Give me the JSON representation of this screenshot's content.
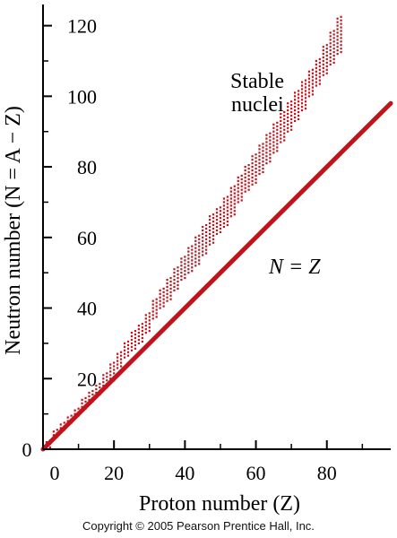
{
  "chart_data": {
    "type": "scatter",
    "title": "",
    "xlabel": "Proton number (Z)",
    "ylabel": "Neutron number (N = A − Z)",
    "xlim": [
      0,
      98
    ],
    "ylim": [
      0,
      126
    ],
    "x_ticks": [
      0,
      20,
      40,
      60,
      80
    ],
    "y_ticks": [
      0,
      20,
      40,
      60,
      80,
      100,
      120
    ],
    "grid": false,
    "colors": {
      "data": "#c0141c",
      "axes": "#000000"
    },
    "lines": [
      {
        "label": "N = Z",
        "x": [
          0,
          98
        ],
        "y": [
          0,
          98
        ]
      }
    ],
    "band": {
      "name": "Stable nuclei",
      "z": [
        1,
        3,
        5,
        7,
        9,
        11,
        13,
        15,
        17,
        19,
        21,
        23,
        25,
        27,
        29,
        31,
        33,
        35,
        37,
        39,
        41,
        43,
        45,
        47,
        49,
        51,
        53,
        55,
        57,
        59,
        61,
        63,
        65,
        67,
        69,
        71,
        73,
        75,
        77,
        79,
        81,
        83
      ],
      "n_min": [
        0,
        3,
        5,
        7,
        9,
        11,
        13,
        15,
        17,
        19,
        23,
        26,
        28,
        30,
        33,
        37,
        40,
        42,
        45,
        48,
        50,
        52,
        55,
        58,
        61,
        63,
        66,
        70,
        73,
        75,
        78,
        81,
        84,
        87,
        90,
        93,
        96,
        100,
        103,
        106,
        109,
        112
      ],
      "n_max": [
        2,
        5,
        7,
        9,
        11,
        14,
        16,
        18,
        21,
        24,
        27,
        30,
        33,
        35,
        38,
        42,
        45,
        48,
        51,
        54,
        57,
        60,
        63,
        66,
        68,
        71,
        74,
        77,
        80,
        83,
        86,
        89,
        92,
        95,
        98,
        101,
        104,
        107,
        110,
        114,
        118,
        122
      ]
    },
    "annotations": [
      {
        "text_line1": "Stable",
        "text_line2": "nuclei",
        "at_data": [
          84,
          100
        ]
      },
      {
        "text": "N = Z",
        "at_data": [
          72,
          58
        ]
      }
    ]
  },
  "footer": {
    "copyright": "Copyright © 2005 Pearson Prentice Hall, Inc."
  }
}
